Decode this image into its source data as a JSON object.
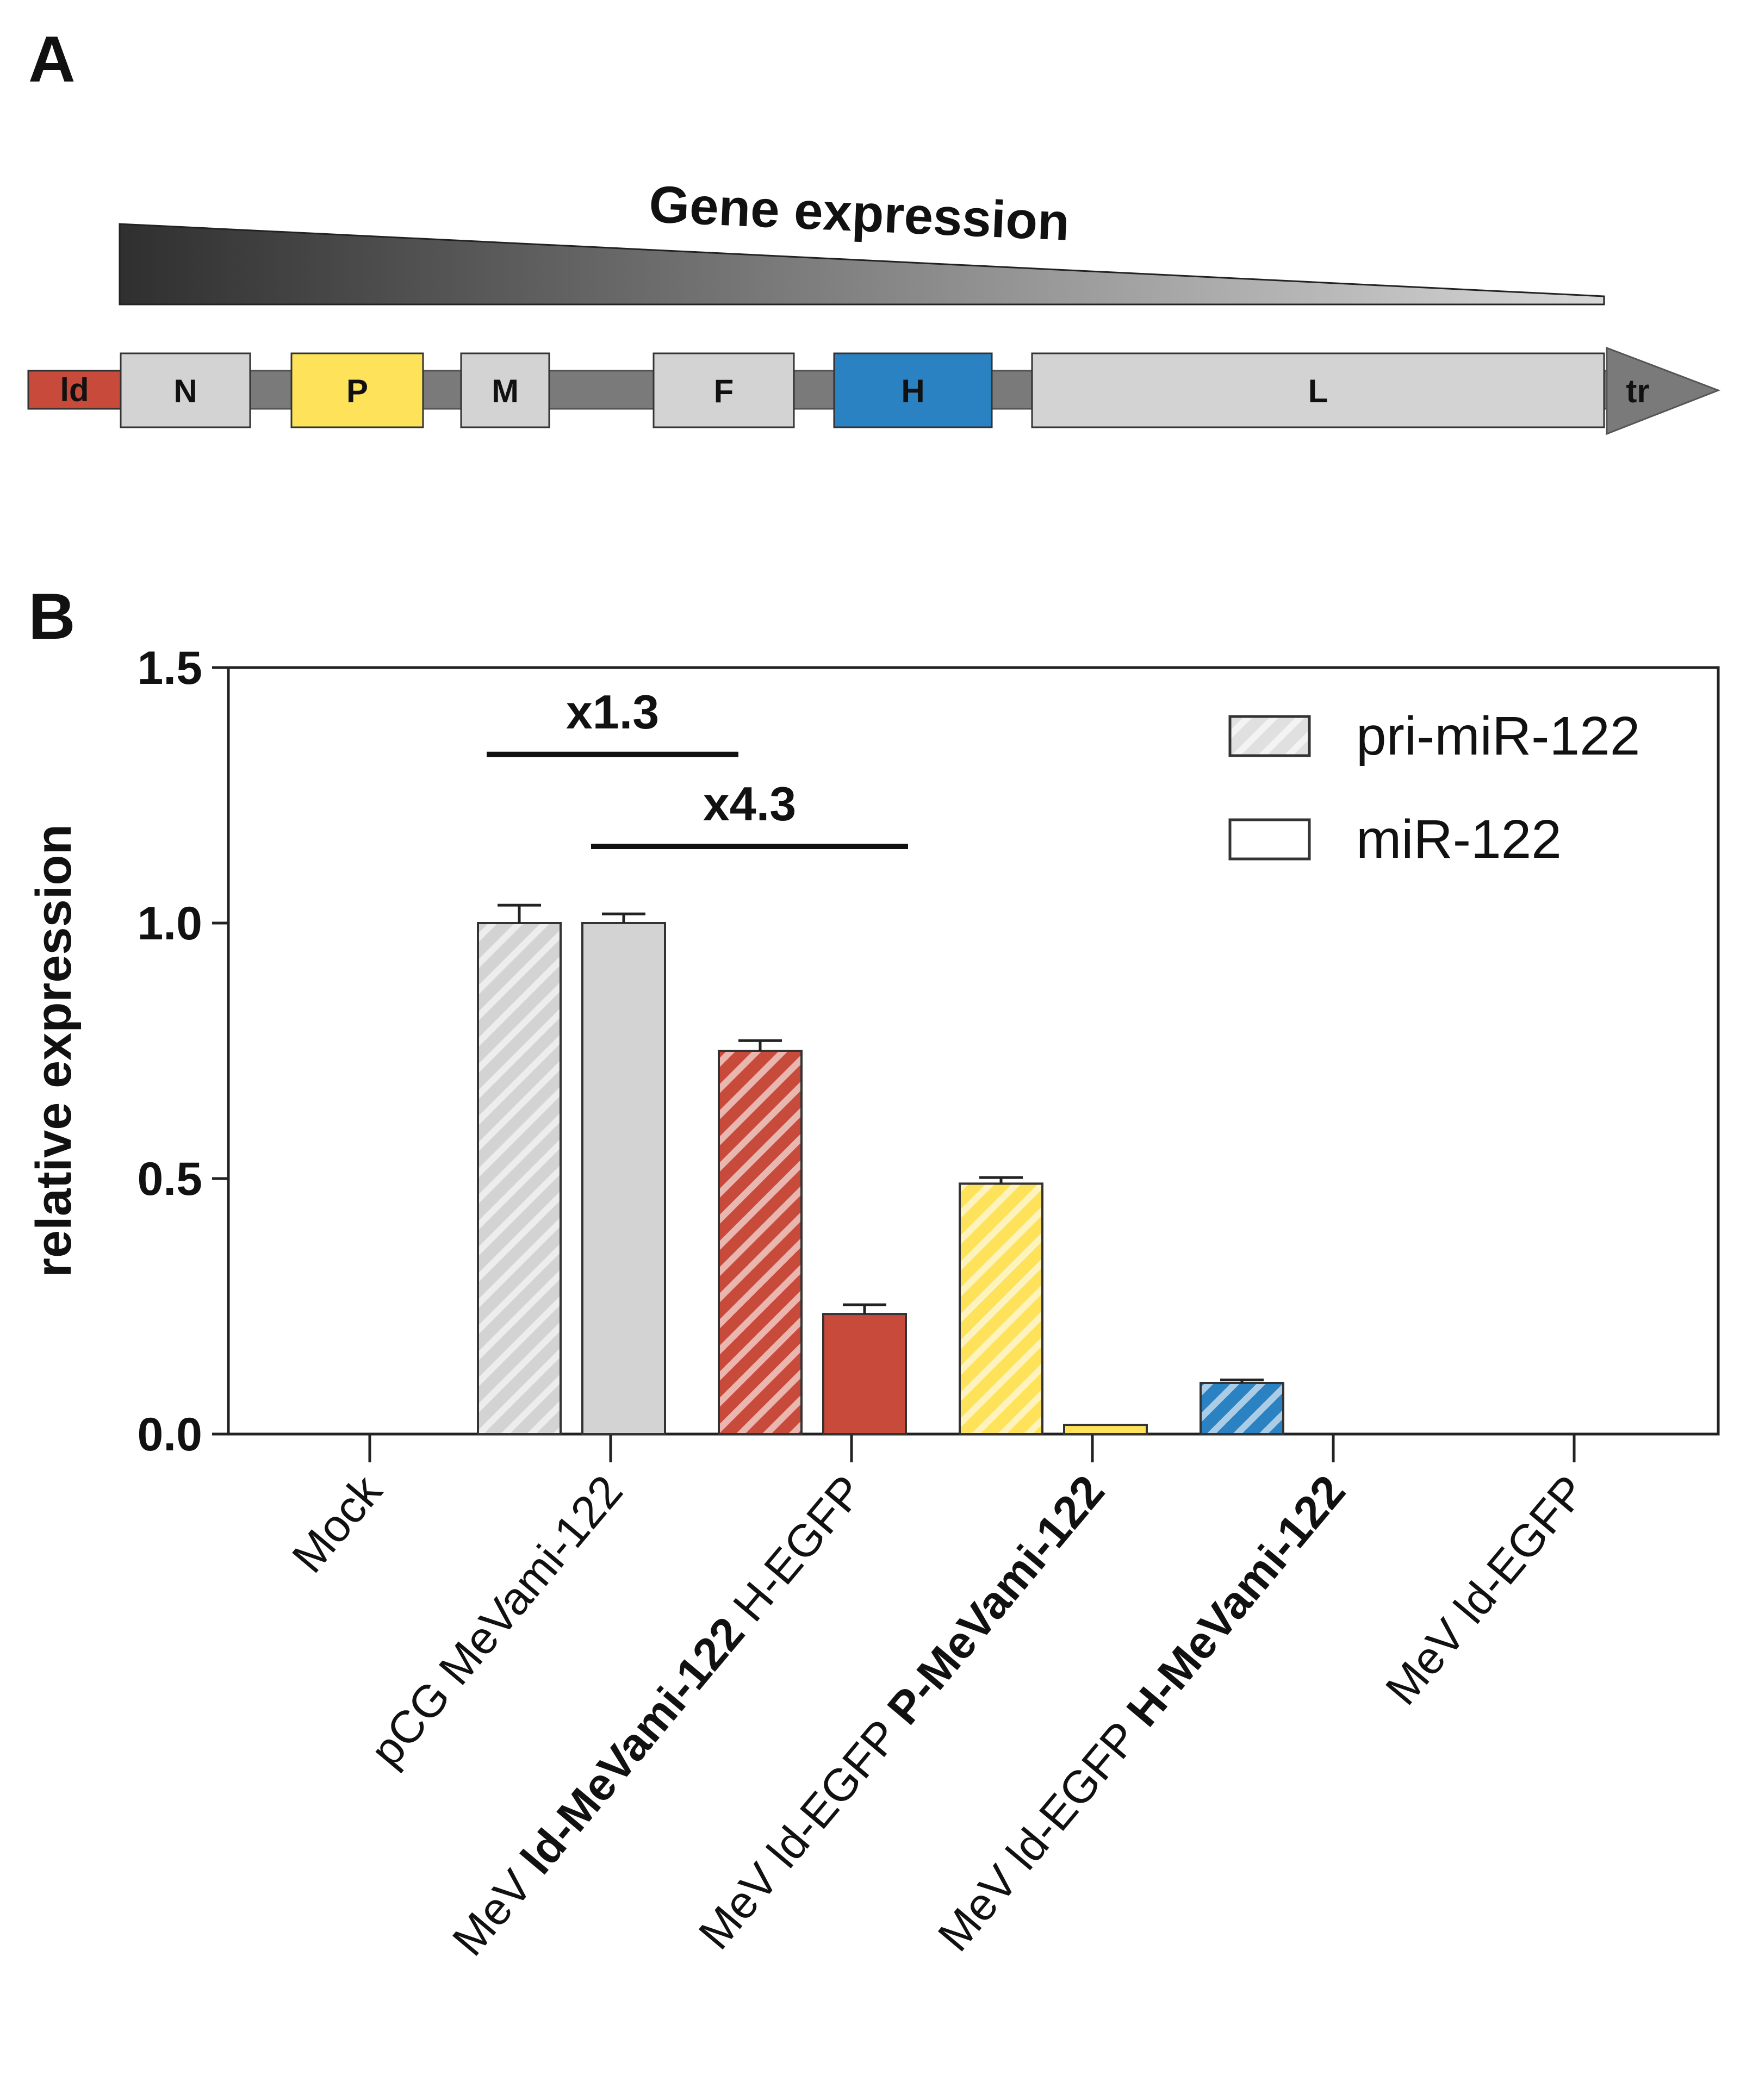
{
  "panel_a": {
    "label": "A",
    "gradient_title": "Gene expression",
    "genes": [
      {
        "id": "ld",
        "label": "ld",
        "color": "#c84a3a"
      },
      {
        "id": "n",
        "label": "N",
        "color": "#d3d3d3"
      },
      {
        "id": "p",
        "label": "P",
        "color": "#fde25a"
      },
      {
        "id": "m",
        "label": "M",
        "color": "#d3d3d3"
      },
      {
        "id": "f",
        "label": "F",
        "color": "#d3d3d3"
      },
      {
        "id": "h",
        "label": "H",
        "color": "#2a82c2"
      },
      {
        "id": "l",
        "label": "L",
        "color": "#d3d3d3"
      },
      {
        "id": "tr",
        "label": "tr",
        "color": "#7a7a7a"
      }
    ]
  },
  "panel_b": {
    "label": "B"
  },
  "chart_data": {
    "type": "bar",
    "ylabel": "relative expression",
    "ylim": [
      0,
      1.5
    ],
    "yticks": [
      "0.0",
      "0.5",
      "1.0",
      "1.5"
    ],
    "yticks_values": [
      0.0,
      0.5,
      1.0,
      1.5
    ],
    "categories": [
      {
        "id": "mock",
        "parts": [
          {
            "text": "Mock",
            "bold": false
          }
        ]
      },
      {
        "id": "pcg",
        "parts": [
          {
            "text": "pCG MeVami-122",
            "bold": false
          }
        ]
      },
      {
        "id": "ld-mevami",
        "parts": [
          {
            "text": "MeV ",
            "bold": false
          },
          {
            "text": "ld-MeVami-122",
            "bold": true
          },
          {
            "text": " H-EGFP",
            "bold": false
          }
        ]
      },
      {
        "id": "p-mevami",
        "parts": [
          {
            "text": "MeV ld-EGFP ",
            "bold": false
          },
          {
            "text": "P-MeVami-122",
            "bold": true
          }
        ]
      },
      {
        "id": "h-mevami",
        "parts": [
          {
            "text": "MeV ld-EGFP ",
            "bold": false
          },
          {
            "text": "H-MeVami-122",
            "bold": true
          }
        ]
      },
      {
        "id": "ld-egfp",
        "parts": [
          {
            "text": "MeV ld-EGFP",
            "bold": false
          }
        ]
      }
    ],
    "series": [
      {
        "name": "pri-miR-122",
        "pattern": "hatched",
        "values": [
          0.0,
          1.0,
          0.75,
          0.49,
          0.1,
          0.0
        ],
        "errors": [
          0.0,
          0.035,
          0.02,
          0.012,
          0.006,
          0.0
        ]
      },
      {
        "name": "miR-122",
        "pattern": "solid",
        "values": [
          0.0,
          1.0,
          0.235,
          0.018,
          0.0,
          0.0
        ],
        "errors": [
          0.0,
          0.018,
          0.018,
          0.0,
          0.0,
          0.0
        ]
      }
    ],
    "colors": [
      "#e8e8e8",
      "#d3d3d3",
      "#c84a3a",
      "#fde25a",
      "#2a82c2",
      "#d3d3d3"
    ],
    "annotations": [
      {
        "label": "x1.3",
        "from": {
          "category": 1,
          "series": 0
        },
        "to": {
          "category": 2,
          "series": 0
        },
        "level": 1.33
      },
      {
        "label": "x4.3",
        "from": {
          "category": 1,
          "series": 1
        },
        "to": {
          "category": 2,
          "series": 1
        },
        "level": 1.15
      }
    ],
    "legend": [
      {
        "label": "pri-miR-122",
        "pattern": "hatched"
      },
      {
        "label": "miR-122",
        "pattern": "solid"
      }
    ],
    "legend_position": "top-right"
  }
}
